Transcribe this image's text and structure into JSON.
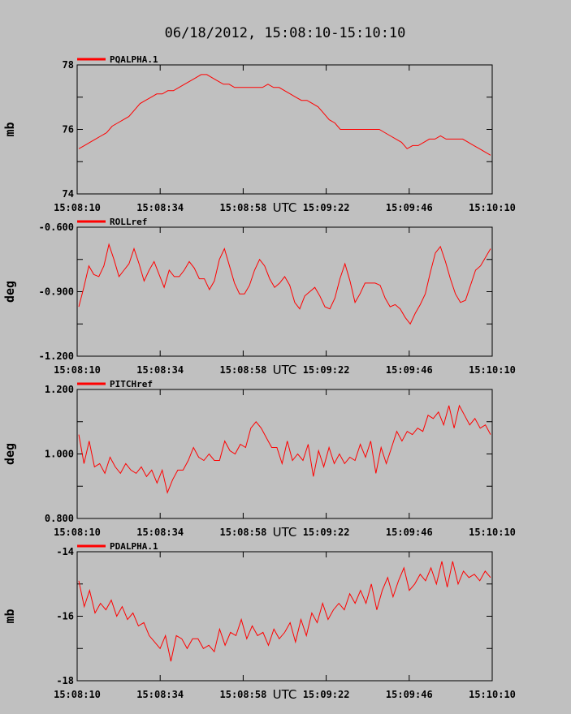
{
  "title": "06/18/2012, 15:08:10-15:10:10",
  "colors": {
    "background": "#c0c0c0",
    "series": "#ff0000",
    "frame": "#000000"
  },
  "chart_data": [
    {
      "type": "line",
      "legend": "PQALPHA.1",
      "legend_position": "top-left",
      "ylabel": "mb",
      "xlabel": "UTC",
      "x_ticks": [
        "15:08:10",
        "15:08:34",
        "15:08:58",
        "15:09:22",
        "15:09:46",
        "15:10:10"
      ],
      "ylim": [
        74,
        78
      ],
      "y_ticks": [
        "74",
        "76",
        "78"
      ],
      "grid": false,
      "series": [
        {
          "values": [
            75.4,
            75.5,
            75.6,
            75.7,
            75.8,
            75.9,
            76.1,
            76.2,
            76.3,
            76.4,
            76.6,
            76.8,
            76.9,
            77.0,
            77.1,
            77.1,
            77.2,
            77.2,
            77.3,
            77.4,
            77.5,
            77.6,
            77.7,
            77.7,
            77.6,
            77.5,
            77.4,
            77.4,
            77.3,
            77.3,
            77.3,
            77.3,
            77.3,
            77.3,
            77.4,
            77.3,
            77.3,
            77.2,
            77.1,
            77.0,
            76.9,
            76.9,
            76.8,
            76.7,
            76.5,
            76.3,
            76.2,
            76.0,
            76.0,
            76.0,
            76.0,
            76.0,
            76.0,
            76.0,
            76.0,
            75.9,
            75.8,
            75.7,
            75.6,
            75.4,
            75.5,
            75.5,
            75.6,
            75.7,
            75.7,
            75.8,
            75.7,
            75.7,
            75.7,
            75.7,
            75.6,
            75.5,
            75.4,
            75.3,
            75.2
          ]
        }
      ]
    },
    {
      "type": "line",
      "legend": "ROLLref",
      "legend_position": "top-left",
      "ylabel": "deg",
      "xlabel": "UTC",
      "x_ticks": [
        "15:08:10",
        "15:08:34",
        "15:08:58",
        "15:09:22",
        "15:09:46",
        "15:10:10"
      ],
      "ylim": [
        -1.2,
        -0.6
      ],
      "y_ticks": [
        "-1.200",
        "-0.900",
        "-0.600"
      ],
      "grid": false,
      "series": [
        {
          "values": [
            -0.97,
            -0.88,
            -0.78,
            -0.82,
            -0.83,
            -0.78,
            -0.68,
            -0.75,
            -0.83,
            -0.8,
            -0.77,
            -0.7,
            -0.77,
            -0.85,
            -0.8,
            -0.76,
            -0.82,
            -0.88,
            -0.8,
            -0.83,
            -0.83,
            -0.8,
            -0.76,
            -0.79,
            -0.84,
            -0.84,
            -0.89,
            -0.85,
            -0.75,
            -0.7,
            -0.78,
            -0.86,
            -0.91,
            -0.91,
            -0.87,
            -0.8,
            -0.75,
            -0.78,
            -0.84,
            -0.88,
            -0.86,
            -0.83,
            -0.87,
            -0.95,
            -0.98,
            -0.92,
            -0.9,
            -0.88,
            -0.92,
            -0.97,
            -0.98,
            -0.93,
            -0.84,
            -0.77,
            -0.85,
            -0.95,
            -0.91,
            -0.86,
            -0.86,
            -0.86,
            -0.87,
            -0.93,
            -0.97,
            -0.96,
            -0.98,
            -1.02,
            -1.05,
            -1.0,
            -0.96,
            -0.91,
            -0.81,
            -0.72,
            -0.69,
            -0.76,
            -0.84,
            -0.91,
            -0.95,
            -0.94,
            -0.87,
            -0.8,
            -0.78,
            -0.74,
            -0.7
          ]
        }
      ]
    },
    {
      "type": "line",
      "legend": "PITCHref",
      "legend_position": "top-left",
      "ylabel": "deg",
      "xlabel": "UTC",
      "x_ticks": [
        "15:08:10",
        "15:08:34",
        "15:08:58",
        "15:09:22",
        "15:09:46",
        "15:10:10"
      ],
      "ylim": [
        0.8,
        1.2
      ],
      "y_ticks": [
        "0.800",
        "1.000",
        "1.200"
      ],
      "grid": false,
      "series": [
        {
          "values": [
            1.06,
            0.97,
            1.04,
            0.96,
            0.97,
            0.94,
            0.99,
            0.96,
            0.94,
            0.97,
            0.95,
            0.94,
            0.96,
            0.93,
            0.95,
            0.91,
            0.95,
            0.88,
            0.92,
            0.95,
            0.95,
            0.98,
            1.02,
            0.99,
            0.98,
            1.0,
            0.98,
            0.98,
            1.04,
            1.01,
            1.0,
            1.03,
            1.02,
            1.08,
            1.1,
            1.08,
            1.05,
            1.02,
            1.02,
            0.97,
            1.04,
            0.98,
            1.0,
            0.98,
            1.03,
            0.93,
            1.01,
            0.96,
            1.02,
            0.97,
            1.0,
            0.97,
            0.99,
            0.98,
            1.03,
            0.99,
            1.04,
            0.94,
            1.02,
            0.97,
            1.02,
            1.07,
            1.04,
            1.07,
            1.06,
            1.08,
            1.07,
            1.12,
            1.11,
            1.13,
            1.09,
            1.15,
            1.08,
            1.15,
            1.12,
            1.09,
            1.11,
            1.08,
            1.09,
            1.06
          ]
        }
      ]
    },
    {
      "type": "line",
      "legend": "PDALPHA.1",
      "legend_position": "top-left",
      "ylabel": "mb",
      "xlabel": "UTC",
      "x_ticks": [
        "15:08:10",
        "15:08:34",
        "15:08:58",
        "15:09:22",
        "15:09:46",
        "15:10:10"
      ],
      "ylim": [
        -18,
        -14
      ],
      "y_ticks": [
        "-18",
        "-16",
        "-14"
      ],
      "grid": false,
      "series": [
        {
          "values": [
            -14.9,
            -15.7,
            -15.2,
            -15.9,
            -15.6,
            -15.8,
            -15.5,
            -16.0,
            -15.7,
            -16.1,
            -15.9,
            -16.3,
            -16.2,
            -16.6,
            -16.8,
            -17.0,
            -16.6,
            -17.4,
            -16.6,
            -16.7,
            -17.0,
            -16.7,
            -16.7,
            -17.0,
            -16.9,
            -17.1,
            -16.4,
            -16.9,
            -16.5,
            -16.6,
            -16.1,
            -16.7,
            -16.3,
            -16.6,
            -16.5,
            -16.9,
            -16.4,
            -16.7,
            -16.5,
            -16.2,
            -16.8,
            -16.1,
            -16.6,
            -15.9,
            -16.2,
            -15.6,
            -16.1,
            -15.8,
            -15.6,
            -15.8,
            -15.3,
            -15.6,
            -15.2,
            -15.6,
            -15.0,
            -15.8,
            -15.2,
            -14.8,
            -15.4,
            -14.9,
            -14.5,
            -15.2,
            -15.0,
            -14.7,
            -14.9,
            -14.5,
            -15.0,
            -14.3,
            -15.1,
            -14.3,
            -15.0,
            -14.6,
            -14.8,
            -14.7,
            -14.9,
            -14.6,
            -14.8
          ]
        }
      ]
    }
  ]
}
